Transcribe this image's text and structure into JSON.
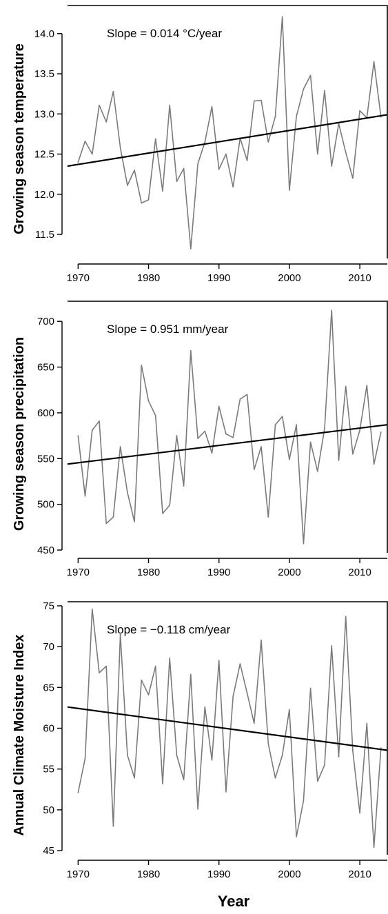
{
  "figure": {
    "xlabel": "Year"
  },
  "chart_data": [
    {
      "type": "line",
      "ylabel": "Growing season temperature",
      "annotation": "Slope = 0.014 °C/year",
      "xlim": [
        1968.5,
        2014
      ],
      "ylim": [
        11.2,
        14.35
      ],
      "xticks": [
        1970,
        1980,
        1990,
        2000,
        2010
      ],
      "yticks": [
        11.5,
        12.0,
        12.5,
        13.0,
        13.5,
        14.0
      ],
      "ytick_labels": [
        "11.5",
        "12.0",
        "12.5",
        "13.0",
        "13.5",
        "14.0"
      ],
      "x": [
        1970,
        1971,
        1972,
        1973,
        1974,
        1975,
        1976,
        1977,
        1978,
        1979,
        1980,
        1981,
        1982,
        1983,
        1984,
        1985,
        1986,
        1987,
        1988,
        1989,
        1990,
        1991,
        1992,
        1993,
        1994,
        1995,
        1996,
        1997,
        1998,
        1999,
        2000,
        2001,
        2002,
        2003,
        2004,
        2005,
        2006,
        2007,
        2008,
        2009,
        2010,
        2011,
        2012,
        2013
      ],
      "values": [
        12.4,
        12.66,
        12.5,
        13.11,
        12.9,
        13.28,
        12.58,
        12.11,
        12.3,
        11.89,
        11.93,
        12.69,
        12.04,
        13.11,
        12.16,
        12.32,
        11.32,
        12.38,
        12.65,
        13.09,
        12.31,
        12.5,
        12.09,
        12.7,
        12.42,
        13.16,
        13.17,
        12.65,
        12.97,
        14.21,
        12.05,
        12.97,
        13.31,
        13.48,
        12.5,
        13.29,
        12.35,
        12.88,
        12.52,
        12.2,
        13.04,
        12.95,
        13.65,
        12.96
      ],
      "trend": {
        "x": [
          1968.5,
          2014
        ],
        "y": [
          12.35,
          12.99
        ]
      }
    },
    {
      "type": "line",
      "ylabel": "Growing season precipitation",
      "annotation": "Slope = 0.951 mm/year",
      "xlim": [
        1968.5,
        2014
      ],
      "ylim": [
        447,
        722
      ],
      "xticks": [
        1970,
        1980,
        1990,
        2000,
        2010
      ],
      "yticks": [
        450,
        500,
        550,
        600,
        650,
        700
      ],
      "ytick_labels": [
        "450",
        "500",
        "550",
        "600",
        "650",
        "700"
      ],
      "x": [
        1970,
        1971,
        1972,
        1973,
        1974,
        1975,
        1976,
        1977,
        1978,
        1979,
        1980,
        1981,
        1982,
        1983,
        1984,
        1985,
        1986,
        1987,
        1988,
        1989,
        1990,
        1991,
        1992,
        1993,
        1994,
        1995,
        1996,
        1997,
        1998,
        1999,
        2000,
        2001,
        2002,
        2003,
        2004,
        2005,
        2006,
        2007,
        2008,
        2009,
        2010,
        2011,
        2012,
        2013
      ],
      "values": [
        575,
        509,
        581,
        591,
        479,
        486,
        563,
        513,
        481,
        652,
        613,
        597,
        490,
        499,
        575,
        520,
        668,
        572,
        580,
        556,
        607,
        577,
        573,
        615,
        620,
        538,
        563,
        486,
        587,
        596,
        549,
        587,
        457,
        568,
        536,
        583,
        712,
        548,
        629,
        555,
        581,
        630,
        544,
        579
      ],
      "trend": {
        "x": [
          1968.5,
          2014
        ],
        "y": [
          544,
          587
        ]
      }
    },
    {
      "type": "line",
      "ylabel": "Annual Climate Moisture Index",
      "annotation": "Slope = −0.118 cm/year",
      "xlim": [
        1968.5,
        2014
      ],
      "ylim": [
        44.5,
        75.5
      ],
      "xticks": [
        1970,
        1980,
        1990,
        2000,
        2010
      ],
      "yticks": [
        45,
        50,
        55,
        60,
        65,
        70,
        75
      ],
      "ytick_labels": [
        "45",
        "50",
        "55",
        "60",
        "65",
        "70",
        "75"
      ],
      "x": [
        1970,
        1971,
        1972,
        1973,
        1974,
        1975,
        1976,
        1977,
        1978,
        1979,
        1980,
        1981,
        1982,
        1983,
        1984,
        1985,
        1986,
        1987,
        1988,
        1989,
        1990,
        1991,
        1992,
        1993,
        1994,
        1995,
        1996,
        1997,
        1998,
        1999,
        2000,
        2001,
        2002,
        2003,
        2004,
        2005,
        2006,
        2007,
        2008,
        2009,
        2010,
        2011,
        2012,
        2013
      ],
      "values": [
        52.1,
        56.3,
        74.6,
        66.8,
        67.6,
        48.0,
        71.5,
        56.7,
        53.9,
        65.9,
        64.1,
        67.6,
        53.2,
        68.6,
        56.7,
        53.7,
        66.6,
        50.1,
        62.6,
        56.1,
        68.3,
        52.2,
        63.9,
        67.9,
        64.3,
        60.6,
        70.8,
        58.1,
        53.9,
        56.7,
        62.3,
        46.7,
        51.1,
        64.9,
        53.5,
        55.5,
        70.1,
        56.5,
        73.7,
        57.2,
        49.6,
        60.6,
        45.4,
        57.6
      ],
      "trend": {
        "x": [
          1968.5,
          2014
        ],
        "y": [
          62.6,
          57.3
        ]
      }
    }
  ],
  "colors": {
    "series": "#7a7a7a",
    "trend": "#000000",
    "axis": "#000000"
  }
}
